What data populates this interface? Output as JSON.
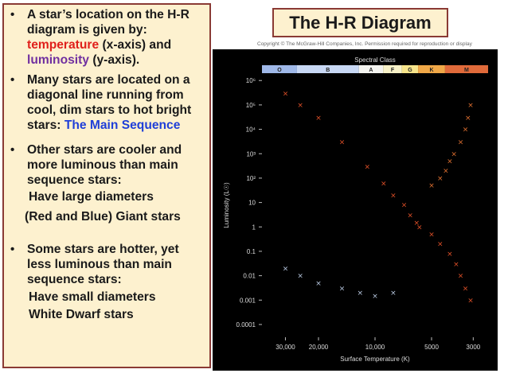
{
  "title": "The H-R Diagram",
  "copyright": "Copyright © The McGraw-Hill Companies, Inc. Permission required for reproduction or display",
  "bullets": {
    "b1": {
      "line1": "A star’s location on the H-R",
      "line2": "diagram is given by:",
      "temperature": "temperature",
      "xaxis": " (x-axis) and",
      "luminosity": "luminosity",
      "yaxis": " (y-axis)."
    },
    "b2": {
      "line1": "Many stars are located on a",
      "line2": "diagonal line running from",
      "line3": "cool, dim stars to hot bright",
      "line4": "stars:  ",
      "main_sequence": "The Main Sequence"
    },
    "b3": {
      "line1": "Other stars are cooler and",
      "line2": "more luminous than main",
      "line3": "sequence stars:",
      "sub1": "Have large diameters",
      "sub2": "(Red and Blue) Giant stars"
    },
    "b4": {
      "line1": "Some stars are hotter, yet",
      "line2": "less luminous than main",
      "line3": "sequence stars:",
      "sub1": "Have small diameters",
      "sub2": "White Dwarf stars"
    }
  },
  "colors": {
    "panel_bg": "#fdf1cf",
    "panel_border": "#8a3a34",
    "temperature_text": "#e0201b",
    "luminosity_text": "#7030a0",
    "main_sequence_text": "#1f3fd8",
    "plot_bg": "#000000"
  },
  "chart_data": {
    "type": "scatter",
    "title": "",
    "top_axis_label": "Spectral Class",
    "spectral_classes": [
      "O",
      "B",
      "A",
      "F",
      "G",
      "K",
      "M"
    ],
    "spectral_colors": [
      "#9fb8e8",
      "#c8d8f4",
      "#f4f4f0",
      "#f8f2c8",
      "#f6e48a",
      "#f0a848",
      "#e06a3a"
    ],
    "xlabel": "Surface Temperature (K)",
    "ylabel": "Luminosity (L☉)",
    "x_scale": "log-reversed",
    "xlim": [
      40000,
      2500
    ],
    "x_ticks": [
      {
        "value": 30000,
        "label": "30,000"
      },
      {
        "value": 20000,
        "label": "20,000"
      },
      {
        "value": 10000,
        "label": "10,000"
      },
      {
        "value": 5000,
        "label": "5000"
      },
      {
        "value": 3000,
        "label": "3000"
      }
    ],
    "y_scale": "log",
    "ylim": [
      3e-05,
      2000000
    ],
    "y_ticks": [
      {
        "value": 1000000,
        "label": "10⁶"
      },
      {
        "value": 100000,
        "label": "10⁵"
      },
      {
        "value": 10000,
        "label": "10⁴"
      },
      {
        "value": 1000,
        "label": "10³"
      },
      {
        "value": 100,
        "label": "10²"
      },
      {
        "value": 10,
        "label": "10"
      },
      {
        "value": 1,
        "label": "1"
      },
      {
        "value": 0.1,
        "label": "0.1"
      },
      {
        "value": 0.01,
        "label": "0.01"
      },
      {
        "value": 0.001,
        "label": "0.001"
      },
      {
        "value": 0.0001,
        "label": "0.0001"
      }
    ],
    "grid": false,
    "series": [
      {
        "color": "#e05028",
        "points": [
          {
            "x": 30000,
            "y": 300000
          },
          {
            "x": 25000,
            "y": 100000
          },
          {
            "x": 20000,
            "y": 30000
          },
          {
            "x": 15000,
            "y": 3000
          },
          {
            "x": 11000,
            "y": 300
          },
          {
            "x": 9000,
            "y": 60
          },
          {
            "x": 8000,
            "y": 20
          },
          {
            "x": 7000,
            "y": 8
          },
          {
            "x": 6500,
            "y": 3
          },
          {
            "x": 6000,
            "y": 1.5
          },
          {
            "x": 5800,
            "y": 1
          },
          {
            "x": 5000,
            "y": 0.5
          },
          {
            "x": 4500,
            "y": 0.2
          },
          {
            "x": 4000,
            "y": 0.08
          },
          {
            "x": 3700,
            "y": 0.03
          },
          {
            "x": 3500,
            "y": 0.01
          },
          {
            "x": 3300,
            "y": 0.003
          },
          {
            "x": 3100,
            "y": 0.001
          }
        ]
      },
      {
        "color": "#e07030",
        "points": [
          {
            "x": 5000,
            "y": 50
          },
          {
            "x": 4500,
            "y": 100
          },
          {
            "x": 4200,
            "y": 200
          },
          {
            "x": 4000,
            "y": 500
          },
          {
            "x": 3800,
            "y": 1000
          },
          {
            "x": 3500,
            "y": 3000
          },
          {
            "x": 3300,
            "y": 10000
          },
          {
            "x": 3200,
            "y": 30000
          },
          {
            "x": 3100,
            "y": 100000
          }
        ]
      },
      {
        "color": "#b8c8e0",
        "points": [
          {
            "x": 30000,
            "y": 0.02
          },
          {
            "x": 25000,
            "y": 0.01
          },
          {
            "x": 20000,
            "y": 0.005
          },
          {
            "x": 15000,
            "y": 0.003
          },
          {
            "x": 12000,
            "y": 0.002
          },
          {
            "x": 10000,
            "y": 0.0015
          },
          {
            "x": 8000,
            "y": 0.002
          }
        ]
      }
    ]
  }
}
